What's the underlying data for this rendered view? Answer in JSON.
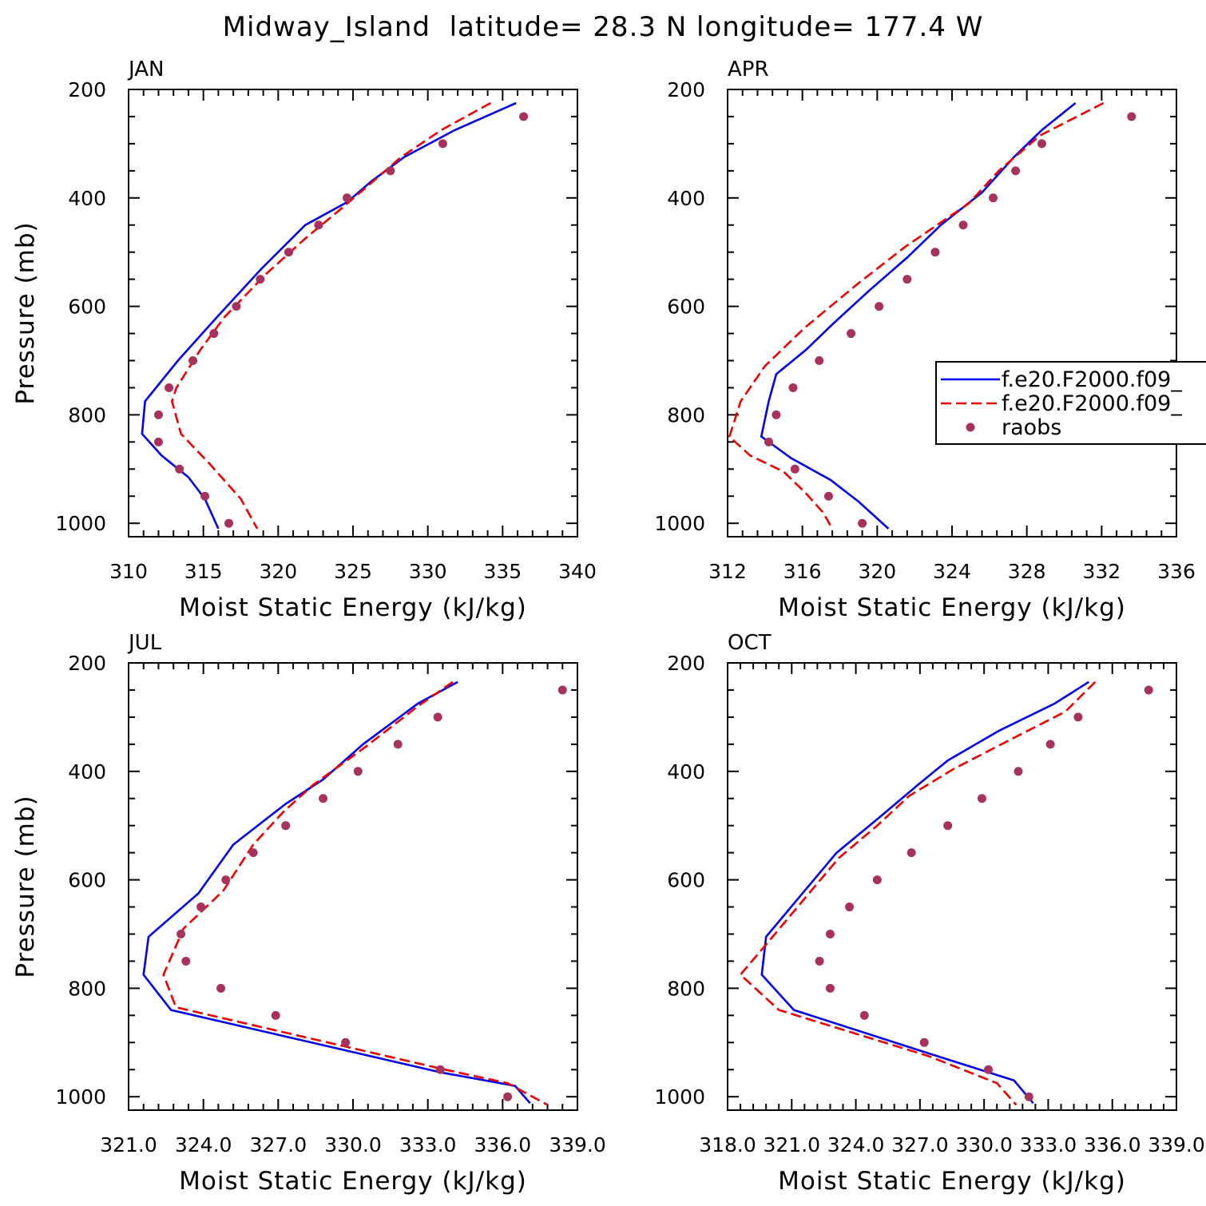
{
  "figure": {
    "title": "Midway_Island  latitude= 28.3 N longitude= 177.4 W"
  },
  "colors": {
    "model1": "#0000ee",
    "model2": "#ee0000",
    "raobs": "#a8325e",
    "axis": "#000000"
  },
  "legend": {
    "panel": 1,
    "placement": "right-middle, clipped at figure edge",
    "entries": [
      {
        "label": "f.e20.F2000.f09_",
        "style": "solid",
        "color_key": "model1"
      },
      {
        "label": "f.e20.F2000.f09_",
        "style": "dashed",
        "color_key": "model2"
      },
      {
        "label": "raobs",
        "style": "dot",
        "color_key": "raobs"
      }
    ]
  },
  "chart_data": [
    {
      "type": "line",
      "panel_label": "JAN",
      "xlabel": "Moist Static Energy (kJ/kg)",
      "ylabel": "Pressure (mb)",
      "xlim": [
        310,
        340
      ],
      "ylim": [
        1000,
        200
      ],
      "xticks": [
        310,
        315,
        320,
        325,
        330,
        335,
        340
      ],
      "xtick_labels": [
        "310",
        "315",
        "320",
        "325",
        "330",
        "335",
        "340"
      ],
      "yticks": [
        200,
        400,
        600,
        800,
        1000
      ],
      "ytick_labels": [
        "200",
        "400",
        "600",
        "800",
        "1000"
      ],
      "series": [
        {
          "style": "solid",
          "color_key": "model1",
          "points": [
            [
              335.9,
              225
            ],
            [
              331.8,
              275
            ],
            [
              328.4,
              325
            ],
            [
              326.2,
              370
            ],
            [
              324.6,
              408
            ],
            [
              321.8,
              450
            ],
            [
              318.9,
              530
            ],
            [
              315.9,
              620
            ],
            [
              313.3,
              700
            ],
            [
              311.1,
              775
            ],
            [
              310.9,
              835
            ],
            [
              312.2,
              875
            ],
            [
              314.0,
              915
            ],
            [
              315.1,
              955
            ],
            [
              316.0,
              1010
            ]
          ]
        },
        {
          "style": "dashed",
          "color_key": "model2",
          "points": [
            [
              334.2,
              225
            ],
            [
              330.9,
              275
            ],
            [
              328.2,
              325
            ],
            [
              325.9,
              380
            ],
            [
              324.2,
              420
            ],
            [
              321.8,
              475
            ],
            [
              319.2,
              540
            ],
            [
              316.4,
              620
            ],
            [
              314.8,
              680
            ],
            [
              313.2,
              750
            ],
            [
              312.9,
              775
            ],
            [
              313.5,
              835
            ],
            [
              315.4,
              890
            ],
            [
              317.5,
              955
            ],
            [
              318.6,
              1010
            ]
          ]
        },
        {
          "style": "dot",
          "color_key": "raobs",
          "points": [
            [
              336.4,
              250
            ],
            [
              331.0,
              300
            ],
            [
              327.5,
              350
            ],
            [
              324.6,
              400
            ],
            [
              322.7,
              450
            ],
            [
              320.7,
              500
            ],
            [
              318.8,
              550
            ],
            [
              317.2,
              600
            ],
            [
              315.7,
              650
            ],
            [
              314.3,
              700
            ],
            [
              312.7,
              750
            ],
            [
              312.0,
              800
            ],
            [
              312.0,
              850
            ],
            [
              313.4,
              900
            ],
            [
              315.1,
              950
            ],
            [
              316.7,
              1000
            ]
          ]
        }
      ]
    },
    {
      "type": "line",
      "panel_label": "APR",
      "xlabel": "Moist Static Energy (kJ/kg)",
      "ylabel": "",
      "xlim": [
        312,
        336
      ],
      "ylim": [
        1000,
        200
      ],
      "xticks": [
        312,
        316,
        320,
        324,
        328,
        332,
        336
      ],
      "xtick_labels": [
        "312",
        "316",
        "320",
        "324",
        "328",
        "332",
        "336"
      ],
      "yticks": [
        200,
        400,
        600,
        800,
        1000
      ],
      "ytick_labels": [
        "200",
        "400",
        "600",
        "800",
        "1000"
      ],
      "series": [
        {
          "style": "solid",
          "color_key": "model1",
          "points": [
            [
              330.6,
              225
            ],
            [
              328.8,
              275
            ],
            [
              327.3,
              325
            ],
            [
              325.6,
              390
            ],
            [
              323.4,
              450
            ],
            [
              321.6,
              510
            ],
            [
              319.6,
              570
            ],
            [
              317.7,
              630
            ],
            [
              316.2,
              680
            ],
            [
              314.6,
              725
            ],
            [
              314.2,
              775
            ],
            [
              313.8,
              840
            ],
            [
              315.4,
              880
            ],
            [
              317.5,
              920
            ],
            [
              319.0,
              960
            ],
            [
              319.8,
              985
            ],
            [
              320.6,
              1010
            ]
          ]
        },
        {
          "style": "dashed",
          "color_key": "model2",
          "points": [
            [
              332.1,
              225
            ],
            [
              328.7,
              285
            ],
            [
              326.5,
              350
            ],
            [
              324.9,
              410
            ],
            [
              321.5,
              490
            ],
            [
              318.9,
              560
            ],
            [
              316.1,
              640
            ],
            [
              314.0,
              710
            ],
            [
              312.7,
              775
            ],
            [
              312.1,
              840
            ],
            [
              313.2,
              875
            ],
            [
              315.0,
              905
            ],
            [
              316.2,
              945
            ],
            [
              317.1,
              980
            ],
            [
              317.6,
              1010
            ]
          ]
        },
        {
          "style": "dot",
          "color_key": "raobs",
          "points": [
            [
              333.6,
              250
            ],
            [
              328.8,
              300
            ],
            [
              327.4,
              350
            ],
            [
              326.2,
              400
            ],
            [
              324.6,
              450
            ],
            [
              323.1,
              500
            ],
            [
              321.6,
              550
            ],
            [
              320.1,
              600
            ],
            [
              318.6,
              650
            ],
            [
              316.9,
              700
            ],
            [
              315.5,
              750
            ],
            [
              314.6,
              800
            ],
            [
              314.2,
              850
            ],
            [
              315.6,
              900
            ],
            [
              317.4,
              950
            ],
            [
              319.2,
              1000
            ]
          ]
        }
      ]
    },
    {
      "type": "line",
      "panel_label": "JUL",
      "xlabel": "Moist Static Energy (kJ/kg)",
      "ylabel": "Pressure (mb)",
      "xlim": [
        321,
        339
      ],
      "ylim": [
        1000,
        200
      ],
      "xticks": [
        321,
        324,
        327,
        330,
        333,
        336,
        339
      ],
      "xtick_labels": [
        "321.0",
        "324.0",
        "327.0",
        "330.0",
        "333.0",
        "336.0",
        "339.0"
      ],
      "yticks": [
        200,
        400,
        600,
        800,
        1000
      ],
      "ytick_labels": [
        "200",
        "400",
        "600",
        "800",
        "1000"
      ],
      "series": [
        {
          "style": "solid",
          "color_key": "model1",
          "points": [
            [
              334.2,
              235
            ],
            [
              332.6,
              275
            ],
            [
              330.4,
              350
            ],
            [
              328.8,
              415
            ],
            [
              327.3,
              460
            ],
            [
              325.2,
              535
            ],
            [
              323.8,
              625
            ],
            [
              321.8,
              705
            ],
            [
              321.6,
              775
            ],
            [
              322.7,
              840
            ],
            [
              333.5,
              955
            ],
            [
              336.5,
              980
            ],
            [
              337.1,
              1012
            ]
          ]
        },
        {
          "style": "dashed",
          "color_key": "model2",
          "points": [
            [
              334.0,
              235
            ],
            [
              332.6,
              280
            ],
            [
              330.5,
              355
            ],
            [
              328.4,
              425
            ],
            [
              327.2,
              475
            ],
            [
              326.0,
              535
            ],
            [
              324.8,
              620
            ],
            [
              323.2,
              690
            ],
            [
              322.4,
              775
            ],
            [
              322.9,
              835
            ],
            [
              333.7,
              950
            ],
            [
              336.2,
              975
            ],
            [
              337.8,
              1015
            ]
          ]
        },
        {
          "style": "dot",
          "color_key": "raobs",
          "points": [
            [
              338.4,
              250
            ],
            [
              333.4,
              300
            ],
            [
              331.8,
              350
            ],
            [
              330.2,
              400
            ],
            [
              328.8,
              450
            ],
            [
              327.3,
              500
            ],
            [
              326.0,
              550
            ],
            [
              324.9,
              600
            ],
            [
              323.9,
              650
            ],
            [
              323.1,
              700
            ],
            [
              323.3,
              750
            ],
            [
              324.7,
              800
            ],
            [
              326.9,
              850
            ],
            [
              329.7,
              900
            ],
            [
              333.5,
              950
            ],
            [
              336.2,
              1000
            ]
          ]
        }
      ]
    },
    {
      "type": "line",
      "panel_label": "OCT",
      "xlabel": "Moist Static Energy (kJ/kg)",
      "ylabel": "",
      "xlim": [
        318,
        339
      ],
      "ylim": [
        1000,
        200
      ],
      "xticks": [
        318,
        321,
        324,
        327,
        330,
        333,
        336,
        339
      ],
      "xtick_labels": [
        "318.0",
        "321.0",
        "324.0",
        "327.0",
        "330.0",
        "333.0",
        "336.0",
        "339.0"
      ],
      "yticks": [
        200,
        400,
        600,
        800,
        1000
      ],
      "ytick_labels": [
        "200",
        "400",
        "600",
        "800",
        "1000"
      ],
      "series": [
        {
          "style": "solid",
          "color_key": "model1",
          "points": [
            [
              334.9,
              235
            ],
            [
              333.3,
              275
            ],
            [
              330.7,
              325
            ],
            [
              328.3,
              380
            ],
            [
              326.9,
              425
            ],
            [
              325.1,
              485
            ],
            [
              323.1,
              550
            ],
            [
              321.5,
              625
            ],
            [
              319.8,
              705
            ],
            [
              319.6,
              775
            ],
            [
              321.1,
              840
            ],
            [
              327.4,
              920
            ],
            [
              331.4,
              970
            ],
            [
              332.3,
              1012
            ]
          ]
        },
        {
          "style": "dashed",
          "color_key": "model2",
          "points": [
            [
              335.2,
              235
            ],
            [
              333.8,
              290
            ],
            [
              331.3,
              340
            ],
            [
              328.6,
              395
            ],
            [
              326.5,
              445
            ],
            [
              325.0,
              500
            ],
            [
              323.2,
              560
            ],
            [
              321.7,
              630
            ],
            [
              320.0,
              710
            ],
            [
              318.6,
              775
            ],
            [
              320.4,
              840
            ],
            [
              327.4,
              925
            ],
            [
              330.6,
              975
            ],
            [
              331.5,
              1015
            ]
          ]
        },
        {
          "style": "dot",
          "color_key": "raobs",
          "points": [
            [
              337.7,
              250
            ],
            [
              334.4,
              300
            ],
            [
              333.1,
              350
            ],
            [
              331.6,
              400
            ],
            [
              329.9,
              450
            ],
            [
              328.3,
              500
            ],
            [
              326.6,
              550
            ],
            [
              325.0,
              600
            ],
            [
              323.7,
              650
            ],
            [
              322.8,
              700
            ],
            [
              322.3,
              750
            ],
            [
              322.8,
              800
            ],
            [
              324.4,
              850
            ],
            [
              327.2,
              900
            ],
            [
              330.2,
              950
            ],
            [
              332.1,
              1000
            ]
          ]
        }
      ]
    }
  ]
}
